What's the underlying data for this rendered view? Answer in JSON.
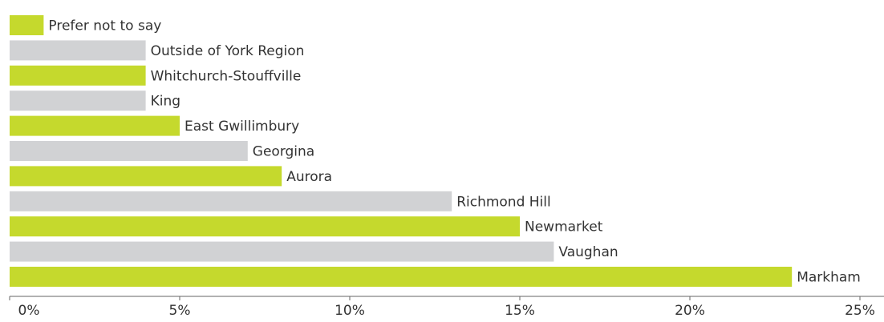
{
  "chart_data": {
    "type": "barh",
    "categories": [
      "Prefer not to say",
      "Outside of York Region",
      "Whitchurch-Stouffville",
      "King",
      "East Gwillimbury",
      "Georgina",
      "Aurora",
      "Richmond Hill",
      "Newmarket",
      "Vaughan",
      "Markham"
    ],
    "values": [
      1,
      4,
      4,
      4,
      5,
      7,
      8,
      13,
      15,
      16,
      23
    ],
    "colors": [
      "#c5d92d",
      "#d1d2d4",
      "#c5d92d",
      "#d1d2d4",
      "#c5d92d",
      "#d1d2d4",
      "#c5d92d",
      "#d1d2d4",
      "#c5d92d",
      "#d1d2d4",
      "#c5d92d"
    ],
    "xlim": [
      0,
      25
    ],
    "xticks": [
      {
        "value": 0,
        "label": "0%"
      },
      {
        "value": 5,
        "label": "5%"
      },
      {
        "value": 10,
        "label": "10%"
      },
      {
        "value": 15,
        "label": "15%"
      },
      {
        "value": 20,
        "label": "20%"
      },
      {
        "value": 25,
        "label": "25%"
      }
    ]
  }
}
